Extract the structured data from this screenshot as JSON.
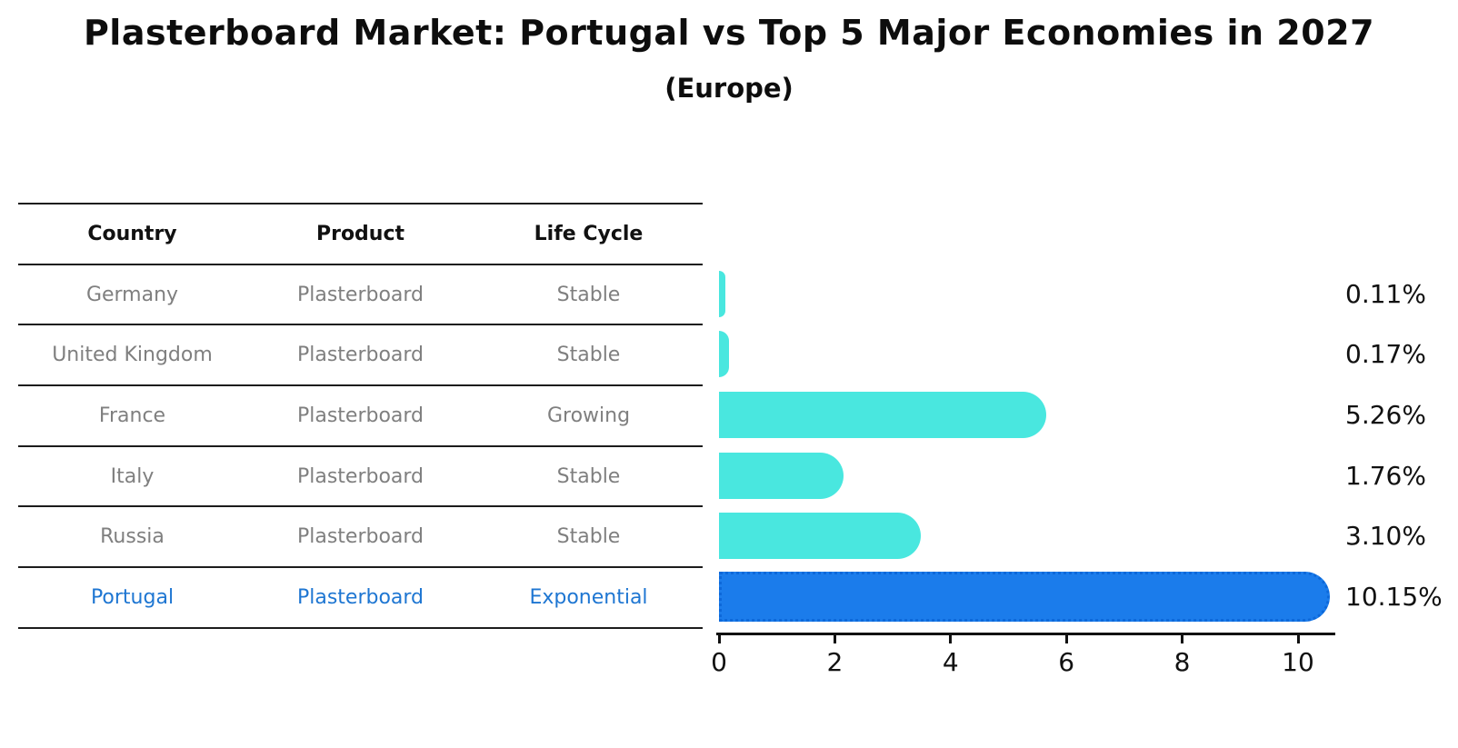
{
  "title": "Plasterboard Market: Portugal vs Top 5 Major Economies in 2027",
  "subtitle": "(Europe)",
  "table": {
    "headers": [
      "Country",
      "Product",
      "Life Cycle"
    ],
    "rows": [
      {
        "country": "Germany",
        "product": "Plasterboard",
        "life_cycle": "Stable",
        "highlight": false
      },
      {
        "country": "United Kingdom",
        "product": "Plasterboard",
        "life_cycle": "Stable",
        "highlight": false
      },
      {
        "country": "France",
        "product": "Plasterboard",
        "life_cycle": "Growing",
        "highlight": false
      },
      {
        "country": "Italy",
        "product": "Plasterboard",
        "life_cycle": "Stable",
        "highlight": false
      },
      {
        "country": "Russia",
        "product": "Plasterboard",
        "life_cycle": "Stable",
        "highlight": false
      },
      {
        "country": "Portugal",
        "product": "Plasterboard",
        "life_cycle": "Exponential",
        "highlight": true
      }
    ]
  },
  "chart_data": {
    "type": "bar",
    "orientation": "horizontal",
    "categories": [
      "Germany",
      "United Kingdom",
      "France",
      "Italy",
      "Russia",
      "Portugal"
    ],
    "values": [
      0.11,
      0.17,
      5.26,
      1.76,
      3.1,
      10.15
    ],
    "value_labels": [
      "0.11%",
      "0.17%",
      "5.26%",
      "1.76%",
      "3.10%",
      "10.15%"
    ],
    "x_ticks": [
      0,
      2,
      4,
      6,
      8,
      10
    ],
    "xlim": [
      0,
      10.65
    ],
    "highlight_index": 5,
    "legend": "none",
    "grid": "off"
  },
  "colors": {
    "bar": "#49E7DF",
    "highlight_bar": "#1B7CEB",
    "highlight_border": "#0D68D9",
    "highlight_text": "#1E76D2",
    "row_text": "#7F7F7F",
    "text": "#111111"
  }
}
